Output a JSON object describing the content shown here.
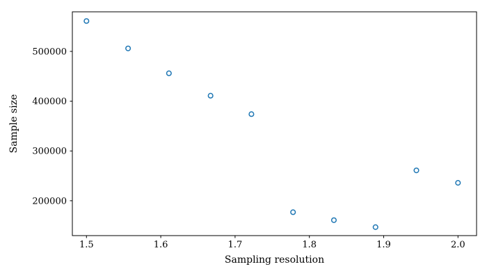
{
  "chart_data": {
    "type": "scatter",
    "title": "",
    "xlabel": "Sampling resolution",
    "ylabel": "Sample size",
    "x": [
      1.5,
      1.556,
      1.611,
      1.667,
      1.722,
      1.778,
      1.833,
      1.889,
      1.944,
      2.0
    ],
    "y": [
      561000,
      506000,
      456000,
      411000,
      374000,
      177000,
      161000,
      147000,
      261000,
      236000
    ],
    "xticks": [
      1.5,
      1.6,
      1.7,
      1.8,
      1.9,
      2.0
    ],
    "xtick_labels": [
      "1.5",
      "1.6",
      "1.7",
      "1.8",
      "1.9",
      "2.0"
    ],
    "yticks": [
      200000,
      300000,
      400000,
      500000
    ],
    "ytick_labels": [
      "200000",
      "300000",
      "400000",
      "500000"
    ],
    "xlim": [
      1.481,
      2.025
    ],
    "ylim": [
      130000,
      579500
    ],
    "grid": false,
    "legend": null,
    "marker": {
      "shape": "circle-open",
      "edge_color": "#1f77b4",
      "fill": "none",
      "radius": 3.3,
      "stroke_width": 1.5
    },
    "colors": {
      "spine": "#000000",
      "tick_label": "#000000",
      "background": "#ffffff"
    }
  }
}
